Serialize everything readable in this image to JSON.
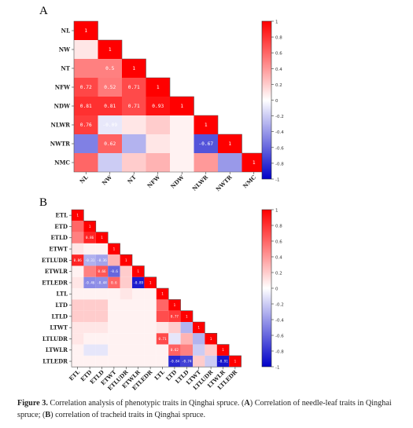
{
  "panel_a_letter": "A",
  "panel_b_letter": "B",
  "caption": {
    "label": "Figure 3.",
    "text_1": " Correlation analysis of phenotypic traits in Qinghai spruce. (",
    "ref_a": "A",
    "text_2": ") Correlation of needle-leaf traits in Qinghai spruce; (",
    "ref_b": "B",
    "text_3": ") correlation of tracheid traits in Qinghai spruce."
  },
  "colors": {
    "negative": "#0000c8",
    "neutral": "#ffffff",
    "positive": "#ff0000"
  },
  "chart_data": [
    {
      "type": "heatmap",
      "panel": "A",
      "layout": "lower-triangle",
      "variables": [
        "NL",
        "NW",
        "NT",
        "NFW",
        "NDW",
        "NLWR",
        "NWTR",
        "NMC"
      ],
      "matrix": [
        [
          1
        ],
        [
          0.1,
          1
        ],
        [
          0.5,
          0.5,
          1
        ],
        [
          0.72,
          0.52,
          0.71,
          1
        ],
        [
          0.81,
          0.81,
          0.71,
          0.93,
          1
        ],
        [
          0.76,
          -0.09,
          0.1,
          0.2,
          0.05,
          1
        ],
        [
          -0.5,
          0.62,
          -0.3,
          0.1,
          0.05,
          -0.67,
          1
        ],
        [
          0.6,
          -0.2,
          0.2,
          0.3,
          0.05,
          0.4,
          -0.4,
          1
        ]
      ],
      "labels": [
        [
          "1"
        ],
        [
          "",
          "1"
        ],
        [
          "",
          "0.5",
          "1"
        ],
        [
          "0.72",
          "0.52",
          "0.71",
          "1"
        ],
        [
          "0.81",
          "0.81",
          "0.71",
          "0.93",
          "1"
        ],
        [
          "0.76",
          "-0.09",
          "",
          "",
          "",
          "1"
        ],
        [
          "",
          "0.62",
          "",
          "",
          "",
          "-0.67",
          "1"
        ],
        [
          "",
          "",
          "",
          "",
          "",
          "",
          "",
          "1"
        ]
      ],
      "colorbar": {
        "range": [
          -1,
          1
        ],
        "ticks": [
          "1",
          "0.8",
          "0.6",
          "0.4",
          "0.2",
          "0",
          "-0.2",
          "-0.4",
          "-0.6",
          "-0.8",
          "-1"
        ]
      }
    },
    {
      "type": "heatmap",
      "panel": "B",
      "layout": "lower-triangle",
      "variables": [
        "ETL",
        "ETD",
        "ETLD",
        "ETWT",
        "ETLUDR",
        "ETWLR",
        "ETLEDR",
        "LTL",
        "LTD",
        "LTLD",
        "LTWT",
        "LTLUDR",
        "LTWLR",
        "LTLEDR"
      ],
      "matrix": [
        [
          1
        ],
        [
          0.6,
          1
        ],
        [
          0.5,
          0.86,
          1
        ],
        [
          0.1,
          0.05,
          0.05,
          1
        ],
        [
          0.86,
          -0.31,
          -0.36,
          0.3,
          1
        ],
        [
          0.05,
          0.5,
          0.66,
          -0.6,
          0.2,
          1
        ],
        [
          0.1,
          -0.46,
          -0.44,
          0.6,
          0.2,
          -0.89,
          1
        ],
        [
          0.05,
          0.05,
          0.05,
          0.05,
          0.1,
          0.05,
          0.05,
          1
        ],
        [
          0.2,
          0.2,
          0.2,
          0.05,
          0.05,
          0.05,
          0.05,
          0.6,
          1
        ],
        [
          0.2,
          0.2,
          0.2,
          0.05,
          0.05,
          0.05,
          0.05,
          0.7,
          0.77,
          1
        ],
        [
          0.1,
          0.1,
          0.1,
          0.05,
          0.05,
          0.05,
          0.05,
          0.1,
          0.2,
          -0.3,
          1
        ],
        [
          0.1,
          0.05,
          0.05,
          0.05,
          0.05,
          0.05,
          0.05,
          0.71,
          -0.1,
          0.3,
          -0.3,
          1
        ],
        [
          0.05,
          -0.1,
          -0.1,
          0.05,
          0.05,
          0.05,
          0.05,
          0.05,
          0.62,
          0.5,
          -0.2,
          0.2,
          1
        ],
        [
          0.05,
          0.05,
          0.05,
          0.05,
          0.05,
          0.05,
          0.05,
          0.05,
          -0.84,
          -0.74,
          0.2,
          -0.2,
          -0.91,
          1
        ]
      ],
      "labels": [
        [
          "1"
        ],
        [
          "",
          "1"
        ],
        [
          "",
          "0.86",
          "1"
        ],
        [
          "",
          "",
          "",
          "1"
        ],
        [
          "0.86",
          "-0.31",
          "-0.36",
          "",
          "1"
        ],
        [
          "",
          "",
          "0.66",
          "-0.6",
          "",
          "1"
        ],
        [
          "",
          "-0.46",
          "-0.44",
          "0.6",
          "",
          "-0.89",
          "1"
        ],
        [
          "",
          "",
          "",
          "",
          "",
          "",
          "",
          "1"
        ],
        [
          "",
          "",
          "",
          "",
          "",
          "",
          "",
          "",
          "1"
        ],
        [
          "",
          "",
          "",
          "",
          "",
          "",
          "",
          "",
          "0.77",
          "1"
        ],
        [
          "",
          "",
          "",
          "",
          "",
          "",
          "",
          "",
          "",
          "",
          "1"
        ],
        [
          "",
          "",
          "",
          "",
          "",
          "",
          "",
          "0.71",
          "",
          "",
          "",
          "1"
        ],
        [
          "",
          "",
          "",
          "",
          "",
          "",
          "",
          "",
          "0.62",
          "",
          "",
          "",
          "1"
        ],
        [
          "",
          "",
          "",
          "",
          "",
          "",
          "",
          "",
          "-0.84",
          "-0.74",
          "",
          "",
          "-0.91",
          "1"
        ]
      ],
      "colorbar": {
        "range": [
          -1,
          1
        ],
        "ticks": [
          "1",
          "0.8",
          "0.6",
          "0.4",
          "0.2",
          "0",
          "-0.2",
          "-0.4",
          "-0.6",
          "-0.8",
          "-1"
        ]
      }
    }
  ]
}
